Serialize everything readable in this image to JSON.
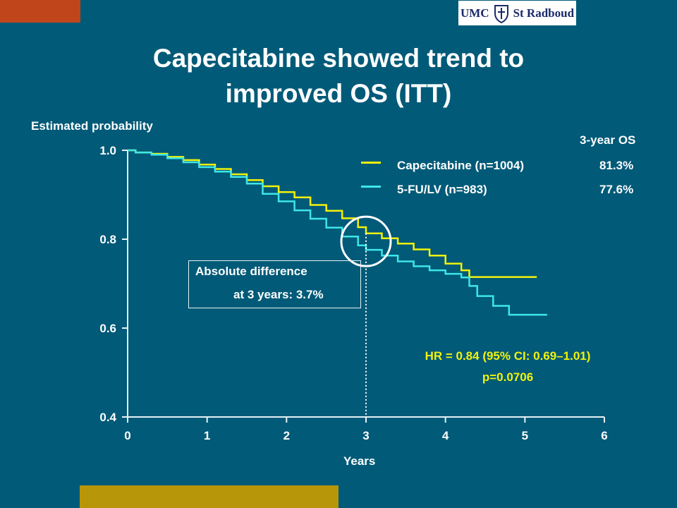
{
  "slide": {
    "title_line1": "Capecitabine showed trend to",
    "title_line2": "improved OS (ITT)",
    "logo_text_left": "UMC",
    "logo_text_right": "St Radboud"
  },
  "legend": {
    "header": "3-year OS",
    "entries": [
      {
        "name": "Capecitabine (n=1004)",
        "value": "81.3%",
        "color": "#f2f20a"
      },
      {
        "name": "5-FU/LV (n=983)",
        "value": "77.6%",
        "color": "#3fe6e6"
      }
    ]
  },
  "annotations": {
    "difference_line1": "Absolute difference",
    "difference_line2": "at 3 years: 3.7%",
    "hr_line1": "HR = 0.84 (95% CI: 0.69–1.01)",
    "hr_line2": "p=0.0706"
  },
  "colors": {
    "background": "#005a78",
    "capecitabine": "#f2f20a",
    "fu_lv": "#3fe6e6",
    "accent_top": "#c0451b",
    "accent_bottom": "#b8960a"
  },
  "chart_data": {
    "type": "line",
    "title": "",
    "xlabel": "Years",
    "ylabel": "Estimated probability",
    "xlim": [
      0,
      6
    ],
    "ylim": [
      0.4,
      1.0
    ],
    "x_ticks": [
      "0",
      "1",
      "2",
      "3",
      "4",
      "5",
      "6"
    ],
    "y_ticks": [
      "0.4",
      "0.6",
      "0.8",
      "1.0"
    ],
    "step": true,
    "reference_x": 3,
    "series": [
      {
        "name": "Capecitabine (n=1004)",
        "x": [
          0,
          0.1,
          0.3,
          0.5,
          0.7,
          0.9,
          1.1,
          1.3,
          1.5,
          1.7,
          1.9,
          2.1,
          2.3,
          2.5,
          2.7,
          2.9,
          3.0,
          3.2,
          3.4,
          3.6,
          3.8,
          4.0,
          4.2,
          4.3,
          4.5,
          4.7,
          5.0,
          5.15
        ],
        "y": [
          1.0,
          0.995,
          0.992,
          0.985,
          0.978,
          0.968,
          0.958,
          0.946,
          0.933,
          0.919,
          0.906,
          0.894,
          0.877,
          0.864,
          0.847,
          0.827,
          0.813,
          0.802,
          0.79,
          0.777,
          0.763,
          0.745,
          0.73,
          0.715,
          0.715,
          0.715,
          0.715,
          0.715
        ]
      },
      {
        "name": "5-FU/LV (n=983)",
        "x": [
          0,
          0.1,
          0.3,
          0.5,
          0.7,
          0.9,
          1.1,
          1.3,
          1.5,
          1.7,
          1.9,
          2.1,
          2.3,
          2.5,
          2.7,
          2.9,
          3.0,
          3.2,
          3.4,
          3.6,
          3.8,
          4.0,
          4.2,
          4.3,
          4.4,
          4.6,
          4.8,
          5.0,
          5.28
        ],
        "y": [
          1.0,
          0.995,
          0.99,
          0.982,
          0.973,
          0.962,
          0.952,
          0.94,
          0.925,
          0.902,
          0.885,
          0.865,
          0.846,
          0.826,
          0.806,
          0.786,
          0.776,
          0.763,
          0.75,
          0.739,
          0.73,
          0.722,
          0.714,
          0.695,
          0.672,
          0.65,
          0.63,
          0.63,
          0.63
        ]
      }
    ]
  }
}
